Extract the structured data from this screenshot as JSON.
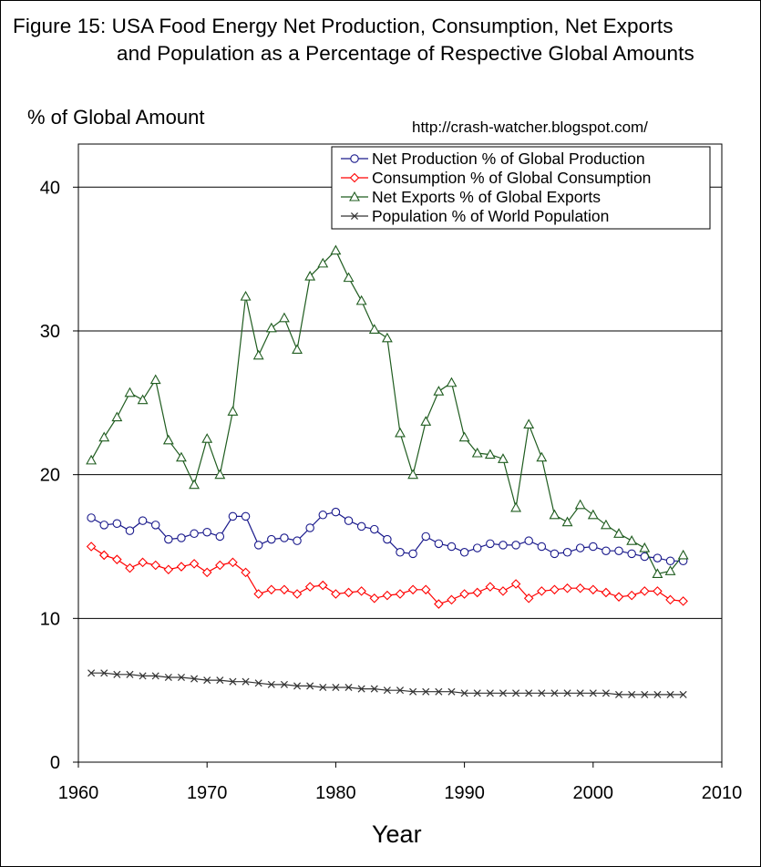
{
  "chart_data": {
    "type": "line",
    "title": "Figure 15: USA Food Energy Net Production, Consumption, Net Exports",
    "title_line2": "and Population as a Percentage of Respective Global Amounts",
    "ylabel": "% of Global Amount",
    "xlabel": "Year",
    "source_note": "http://crash-watcher.blogspot.com/",
    "xlim": [
      1960,
      2010
    ],
    "ylim": [
      0,
      43
    ],
    "xticks": [
      1960,
      1970,
      1980,
      1990,
      2000,
      2010
    ],
    "yticks": [
      0,
      10,
      20,
      30,
      40
    ],
    "grid": "horizontal",
    "legend_position": "top-right",
    "x": [
      1961,
      1962,
      1963,
      1964,
      1965,
      1966,
      1967,
      1968,
      1969,
      1970,
      1971,
      1972,
      1973,
      1974,
      1975,
      1976,
      1977,
      1978,
      1979,
      1980,
      1981,
      1982,
      1983,
      1984,
      1985,
      1986,
      1987,
      1988,
      1989,
      1990,
      1991,
      1992,
      1993,
      1994,
      1995,
      1996,
      1997,
      1998,
      1999,
      2000,
      2001,
      2002,
      2003,
      2004,
      2005,
      2006,
      2007
    ],
    "series": [
      {
        "name": "Net Production % of Global Production",
        "color": "#1a1a8c",
        "marker": "circle",
        "values": [
          17.0,
          16.5,
          16.6,
          16.1,
          16.8,
          16.5,
          15.5,
          15.6,
          15.9,
          16.0,
          15.7,
          17.1,
          17.1,
          15.1,
          15.5,
          15.6,
          15.4,
          16.3,
          17.2,
          17.4,
          16.8,
          16.4,
          16.2,
          15.5,
          14.6,
          14.5,
          15.7,
          15.2,
          15.0,
          14.6,
          14.9,
          15.2,
          15.1,
          15.1,
          15.4,
          15.0,
          14.5,
          14.6,
          14.9,
          15.0,
          14.7,
          14.7,
          14.5,
          14.3,
          14.2,
          14.0,
          14.0
        ]
      },
      {
        "name": "Consumption % of Global Consumption",
        "color": "#ff0000",
        "marker": "diamond",
        "values": [
          15.0,
          14.4,
          14.1,
          13.5,
          13.9,
          13.7,
          13.4,
          13.6,
          13.8,
          13.2,
          13.7,
          13.9,
          13.2,
          11.7,
          12.0,
          12.0,
          11.7,
          12.2,
          12.3,
          11.7,
          11.8,
          11.9,
          11.4,
          11.6,
          11.7,
          12.0,
          12.0,
          11.0,
          11.3,
          11.7,
          11.8,
          12.2,
          11.9,
          12.4,
          11.4,
          11.9,
          12.0,
          12.1,
          12.1,
          12.0,
          11.8,
          11.5,
          11.6,
          11.9,
          11.9,
          11.3,
          11.2
        ]
      },
      {
        "name": "Net Exports % of Global Exports",
        "color": "#1f5c1f",
        "marker": "triangle",
        "values": [
          21.0,
          22.6,
          24.0,
          25.7,
          25.2,
          26.6,
          22.4,
          21.2,
          19.3,
          22.5,
          20.0,
          24.4,
          32.4,
          28.3,
          30.2,
          30.9,
          28.7,
          33.8,
          34.7,
          35.6,
          33.7,
          32.1,
          30.1,
          29.5,
          22.9,
          20.0,
          23.7,
          25.8,
          26.4,
          22.6,
          21.5,
          21.4,
          21.1,
          17.7,
          23.5,
          21.2,
          17.2,
          16.7,
          17.9,
          17.2,
          16.5,
          15.9,
          15.4,
          14.9,
          13.1,
          13.3,
          14.4
        ]
      },
      {
        "name": "Population % of World Population",
        "color": "#333333",
        "marker": "x",
        "values": [
          6.2,
          6.2,
          6.1,
          6.1,
          6.0,
          6.0,
          5.9,
          5.9,
          5.8,
          5.7,
          5.7,
          5.6,
          5.6,
          5.5,
          5.4,
          5.4,
          5.3,
          5.3,
          5.2,
          5.2,
          5.2,
          5.1,
          5.1,
          5.0,
          5.0,
          4.9,
          4.9,
          4.9,
          4.9,
          4.8,
          4.8,
          4.8,
          4.8,
          4.8,
          4.8,
          4.8,
          4.8,
          4.8,
          4.8,
          4.8,
          4.8,
          4.7,
          4.7,
          4.7,
          4.7,
          4.7,
          4.7
        ]
      }
    ]
  }
}
